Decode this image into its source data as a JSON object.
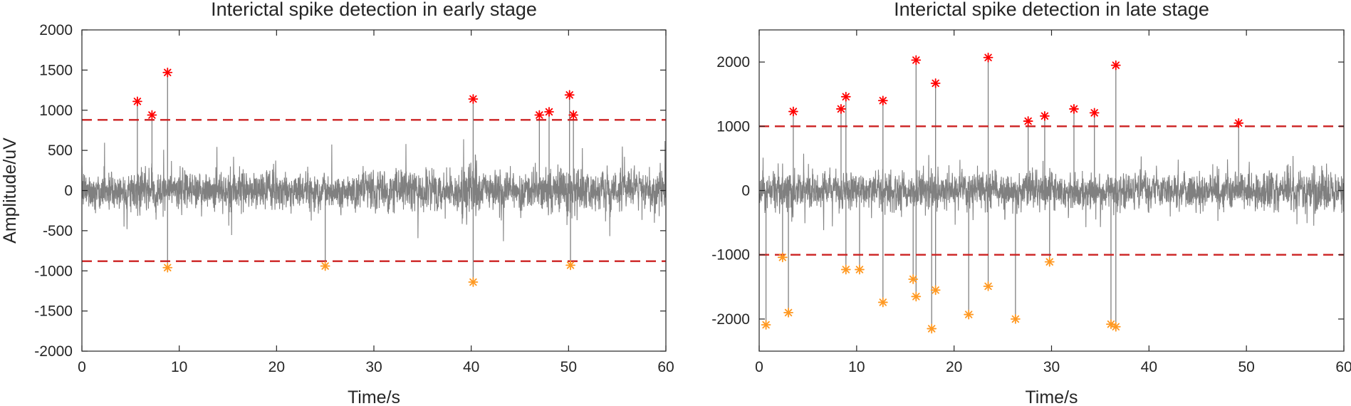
{
  "chart_data": [
    {
      "type": "line",
      "title": "Interictal spike detection in early stage",
      "xlabel": "Time/s",
      "ylabel": "Amplitude/uV",
      "xlim": [
        0,
        60
      ],
      "ylim": [
        -2000,
        2000
      ],
      "xticks": [
        0,
        10,
        20,
        30,
        40,
        50,
        60
      ],
      "yticks": [
        2000,
        1500,
        1000,
        500,
        0,
        -500,
        -1000,
        -1500,
        -2000
      ],
      "thresholds": [
        880,
        -880
      ],
      "signal": {
        "name": "EEG signal",
        "color": "#808080",
        "noise_sd": 150,
        "burst_regions": [
          [
            39,
            41
          ],
          [
            49,
            51
          ]
        ]
      },
      "positive_spikes": [
        {
          "t": 5.7,
          "v": 1110
        },
        {
          "t": 7.2,
          "v": 940
        },
        {
          "t": 8.8,
          "v": 1470
        },
        {
          "t": 40.2,
          "v": 1140
        },
        {
          "t": 47.0,
          "v": 940
        },
        {
          "t": 48.0,
          "v": 980
        },
        {
          "t": 50.1,
          "v": 1190
        },
        {
          "t": 50.5,
          "v": 940
        }
      ],
      "negative_spikes": [
        {
          "t": 8.8,
          "v": -960
        },
        {
          "t": 25.0,
          "v": -940
        },
        {
          "t": 40.2,
          "v": -1140
        },
        {
          "t": 50.2,
          "v": -930
        }
      ],
      "colors": {
        "positive_marker": "#ff0000",
        "negative_marker": "#ff9922",
        "threshold": "#cc2222",
        "axis": "#262626"
      }
    },
    {
      "type": "line",
      "title": "Interictal spike detection in late stage",
      "xlabel": "Time/s",
      "ylabel": "",
      "xlim": [
        0,
        60
      ],
      "ylim": [
        -2500,
        2500
      ],
      "xticks": [
        0,
        10,
        20,
        30,
        40,
        50,
        60
      ],
      "yticks": [
        2000,
        1000,
        0,
        -1000,
        -2000
      ],
      "thresholds": [
        1000,
        -1000
      ],
      "signal": {
        "name": "EEG signal",
        "color": "#808080",
        "noise_sd": 180,
        "burst_regions": []
      },
      "positive_spikes": [
        {
          "t": 3.5,
          "v": 1230
        },
        {
          "t": 8.4,
          "v": 1270
        },
        {
          "t": 8.9,
          "v": 1460
        },
        {
          "t": 12.7,
          "v": 1400
        },
        {
          "t": 16.1,
          "v": 2030
        },
        {
          "t": 18.1,
          "v": 1670
        },
        {
          "t": 23.5,
          "v": 2070
        },
        {
          "t": 27.6,
          "v": 1080
        },
        {
          "t": 29.3,
          "v": 1160
        },
        {
          "t": 32.3,
          "v": 1270
        },
        {
          "t": 34.4,
          "v": 1210
        },
        {
          "t": 36.6,
          "v": 1950
        },
        {
          "t": 49.2,
          "v": 1050
        }
      ],
      "negative_spikes": [
        {
          "t": 0.7,
          "v": -2090
        },
        {
          "t": 2.4,
          "v": -1040
        },
        {
          "t": 3.0,
          "v": -1900
        },
        {
          "t": 8.9,
          "v": -1230
        },
        {
          "t": 10.3,
          "v": -1230
        },
        {
          "t": 12.7,
          "v": -1740
        },
        {
          "t": 15.8,
          "v": -1380
        },
        {
          "t": 16.1,
          "v": -1650
        },
        {
          "t": 17.7,
          "v": -2150
        },
        {
          "t": 18.1,
          "v": -1550
        },
        {
          "t": 21.5,
          "v": -1930
        },
        {
          "t": 23.5,
          "v": -1490
        },
        {
          "t": 26.3,
          "v": -2000
        },
        {
          "t": 29.8,
          "v": -1110
        },
        {
          "t": 36.1,
          "v": -2080
        },
        {
          "t": 36.6,
          "v": -2120
        }
      ],
      "colors": {
        "positive_marker": "#ff0000",
        "negative_marker": "#ff9922",
        "threshold": "#cc2222",
        "axis": "#262626"
      }
    }
  ]
}
